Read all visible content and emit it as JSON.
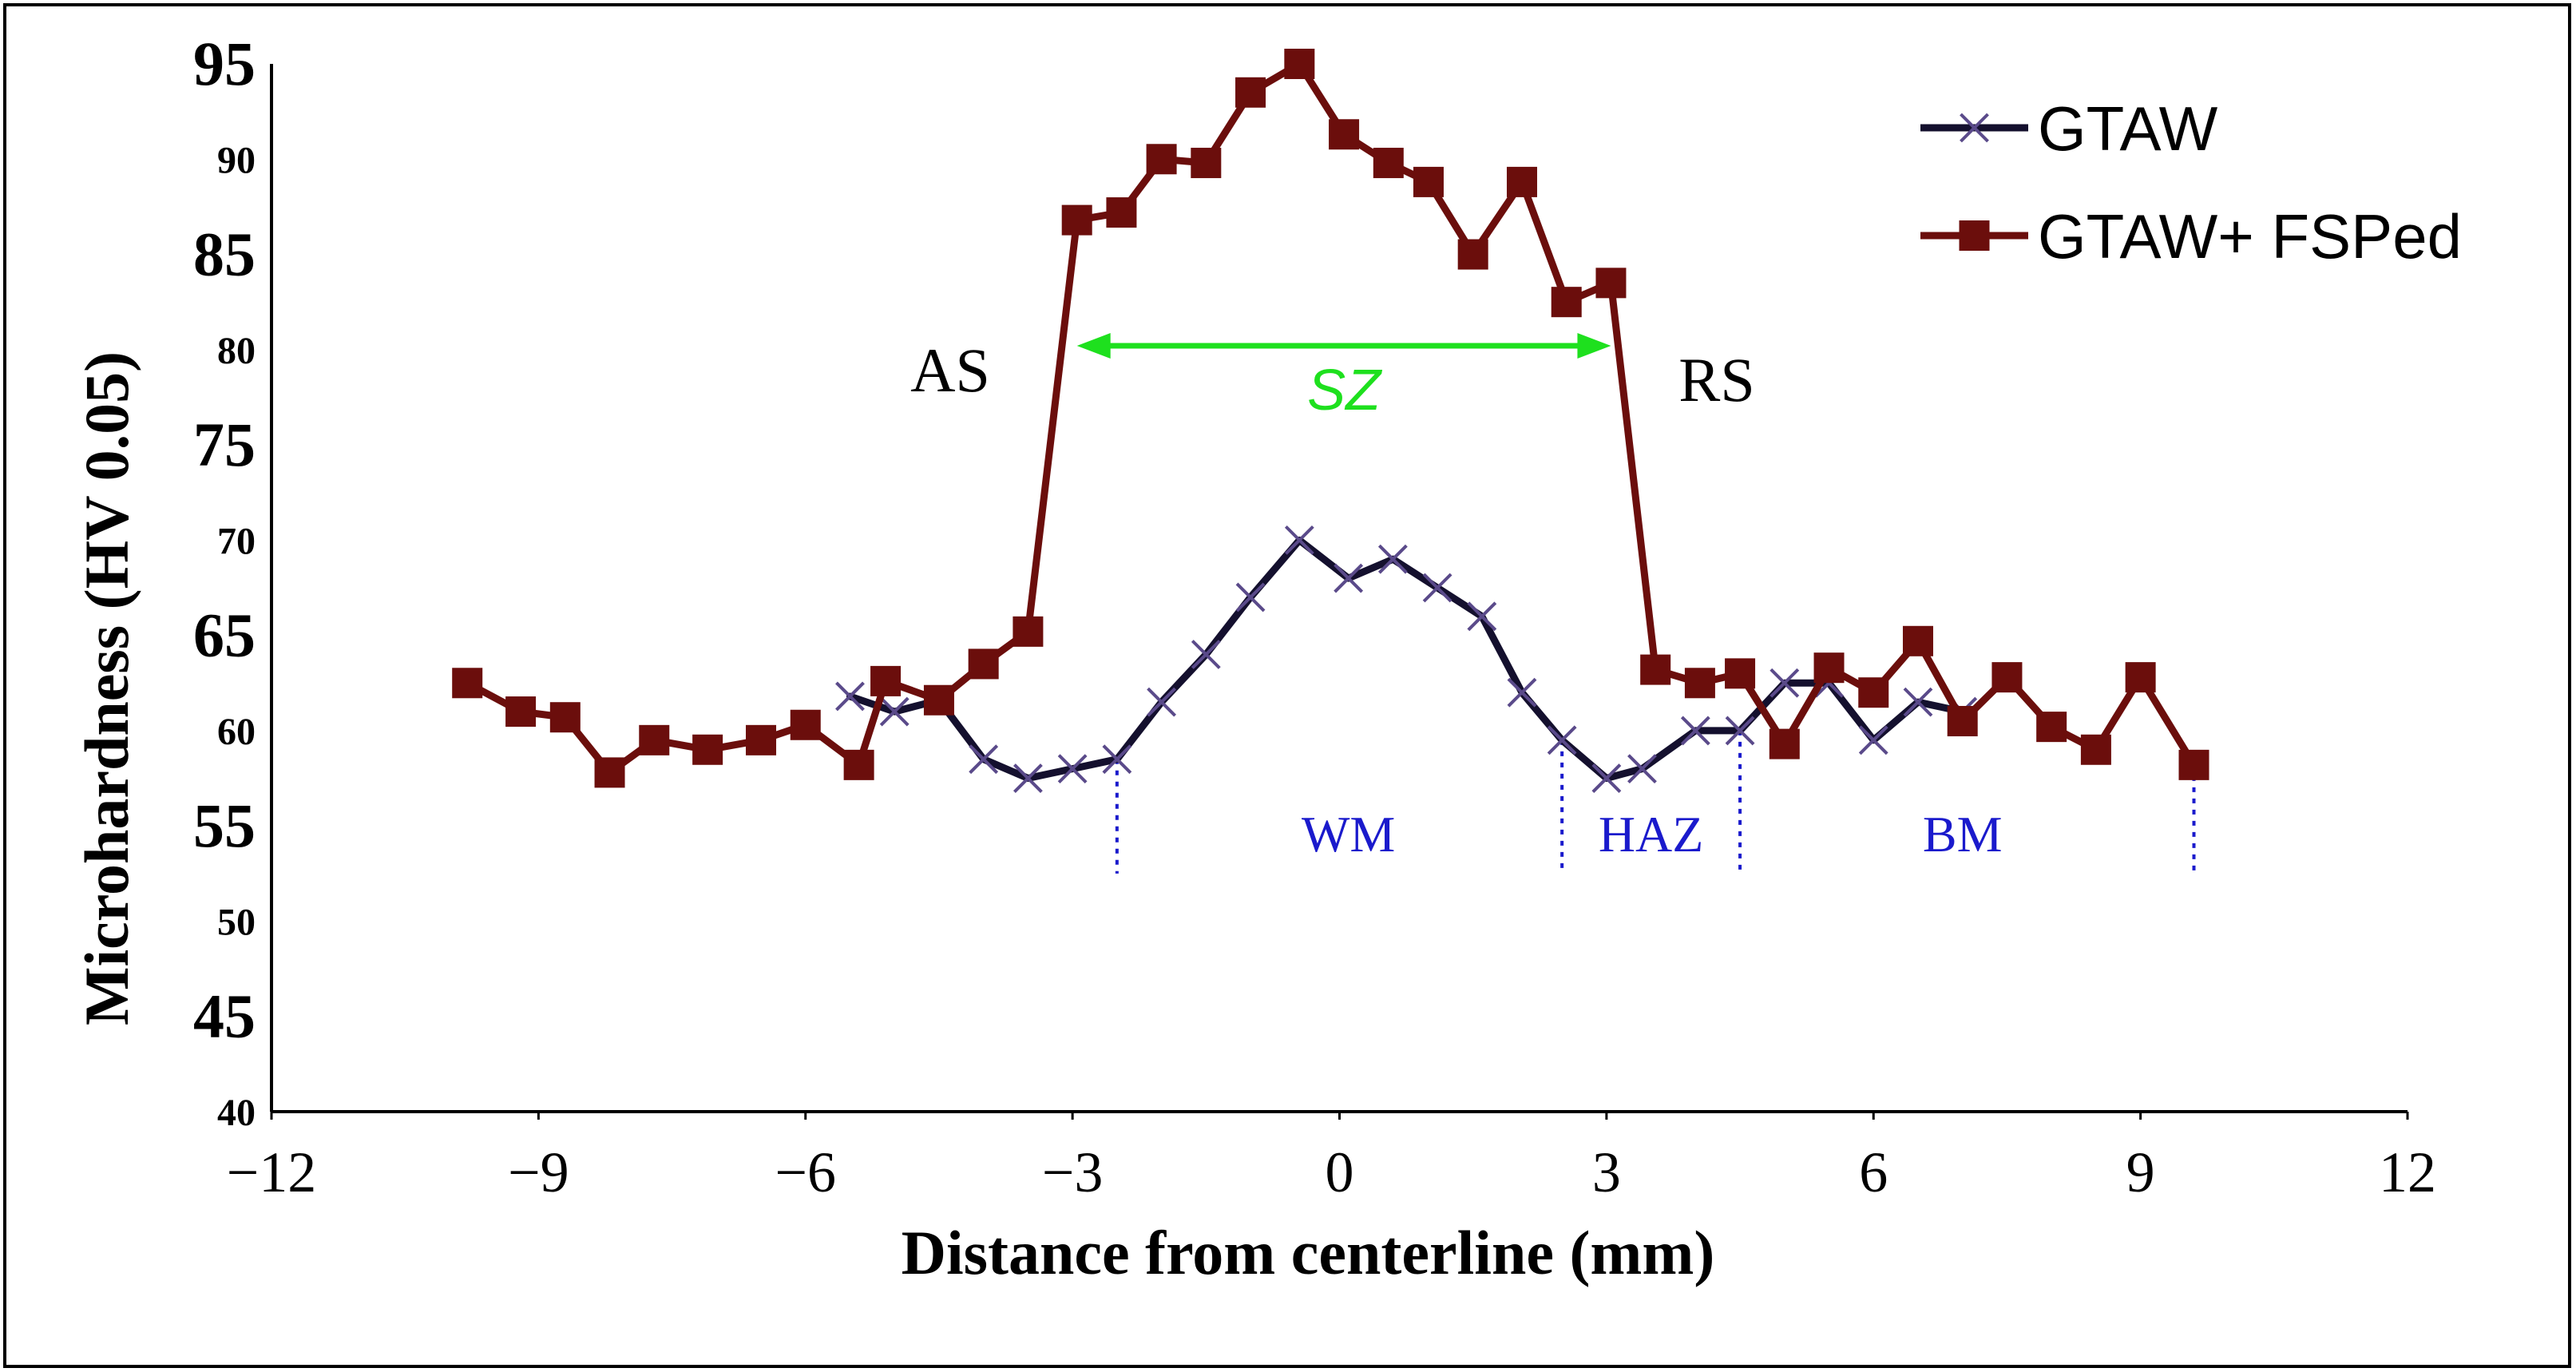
{
  "chart_data": {
    "type": "line",
    "title": "",
    "xlabel": "Distance from centerline (mm)",
    "ylabel": "Microhardness (HV 0.05)",
    "xlim": [
      -12,
      12
    ],
    "ylim": [
      40,
      95
    ],
    "grid": false,
    "legend_position": "top-right",
    "x_ticks": [
      -12,
      -9,
      -6,
      -3,
      0,
      3,
      6,
      9,
      12
    ],
    "x_tick_labels": [
      "−12",
      "−9",
      "−6",
      "−3",
      "0",
      "3",
      "6",
      "9",
      "12"
    ],
    "y_ticks": [
      {
        "value": 95,
        "label": "95",
        "size": "big"
      },
      {
        "value": 90,
        "label": "90",
        "size": "small"
      },
      {
        "value": 85,
        "label": "85",
        "size": "big"
      },
      {
        "value": 80,
        "label": "80",
        "size": "small"
      },
      {
        "value": 75,
        "label": "75",
        "size": "big"
      },
      {
        "value": 70,
        "label": "70",
        "size": "small"
      },
      {
        "value": 65,
        "label": "65",
        "size": "big"
      },
      {
        "value": 60,
        "label": "60",
        "size": "small"
      },
      {
        "value": 55,
        "label": "55",
        "size": "big"
      },
      {
        "value": 50,
        "label": "50",
        "size": "small"
      },
      {
        "value": 45,
        "label": "45",
        "size": "big"
      },
      {
        "value": 40,
        "label": "40",
        "size": "small"
      }
    ],
    "series": [
      {
        "name": "GTAW",
        "color": "#14102e",
        "marker": "x",
        "x": [
          -5.5,
          -5.0,
          -4.5,
          -4.0,
          -3.5,
          -3.0,
          -2.5,
          -2.0,
          -1.5,
          -1.0,
          -0.45,
          0.1,
          0.6,
          1.1,
          1.6,
          2.05,
          2.5,
          3.0,
          3.4,
          4.0,
          4.5,
          5.0,
          5.5,
          6.0,
          6.5,
          7.0
        ],
        "y": [
          61.8,
          61.0,
          61.6,
          58.5,
          57.5,
          58.0,
          58.5,
          61.5,
          64.0,
          67.0,
          70.0,
          68.0,
          69.0,
          67.5,
          66.0,
          62.0,
          59.5,
          57.5,
          58.0,
          60.0,
          60.0,
          62.5,
          62.5,
          59.5,
          61.5,
          61.0
        ]
      },
      {
        "name": "GTAW+ FSPed",
        "color": "#6b0e0c",
        "marker": "square",
        "x": [
          -9.8,
          -9.2,
          -8.7,
          -8.2,
          -7.7,
          -7.1,
          -6.5,
          -6.0,
          -5.4,
          -5.1,
          -4.5,
          -4.0,
          -3.5,
          -2.95,
          -2.45,
          -2.0,
          -1.5,
          -1.0,
          -0.45,
          0.05,
          0.55,
          1.0,
          1.5,
          2.05,
          2.55,
          3.05,
          3.55,
          4.05,
          4.5,
          5.0,
          5.5,
          6.0,
          6.5,
          7.0,
          7.5,
          8.0,
          8.5,
          9.0,
          9.6
        ],
        "y": [
          62.5,
          61.0,
          60.7,
          57.8,
          59.5,
          59.0,
          59.5,
          60.3,
          58.2,
          62.6,
          61.6,
          63.5,
          65.2,
          86.8,
          87.2,
          90.0,
          89.8,
          93.5,
          95.0,
          91.3,
          89.8,
          88.8,
          85.0,
          88.8,
          82.5,
          83.5,
          63.2,
          62.5,
          63.0,
          59.3,
          63.3,
          62.0,
          64.7,
          60.5,
          62.8,
          60.2,
          59.0,
          62.8,
          58.2
        ]
      }
    ],
    "annotations": {
      "as_label": "AS",
      "rs_label": "RS",
      "sz_label": "SZ",
      "sz_arrow": {
        "x_start": -2.95,
        "x_end": 3.05,
        "y": 80.2,
        "color": "#1ee01e"
      },
      "zone_color": "#1a1acc",
      "zone_boundaries": [
        {
          "x": -2.5,
          "y_top": 58.5,
          "y_bottom": 52.5
        },
        {
          "x": 2.5,
          "y_top": 59.5,
          "y_bottom": 52.5
        },
        {
          "x": 4.5,
          "y_top": 60.0,
          "y_bottom": 52.5
        },
        {
          "x": 9.6,
          "y_top": 58.2,
          "y_bottom": 52.5
        }
      ],
      "zones": [
        {
          "label": "WM",
          "x": 0.1,
          "y": 54.5
        },
        {
          "label": "HAZ",
          "x": 3.5,
          "y": 54.5
        },
        {
          "label": "BM",
          "x": 7.0,
          "y": 54.5
        }
      ]
    }
  }
}
